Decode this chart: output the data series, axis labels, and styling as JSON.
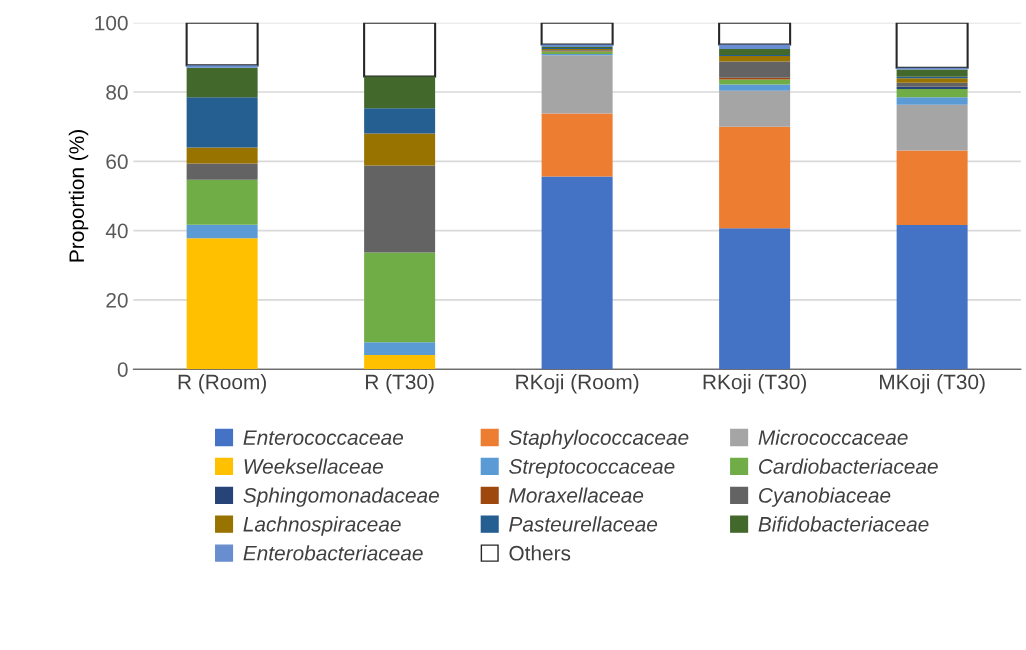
{
  "chart_data": {
    "type": "bar",
    "stacked": true,
    "ylabel": "Proportion (%)",
    "categories": [
      "R (Room)",
      "R (T30)",
      "RKoji (Room)",
      "RKoji (T30)",
      "MKoji (T30)"
    ],
    "ylim": [
      0,
      100
    ],
    "yticks": [
      0,
      20,
      40,
      60,
      80,
      100
    ],
    "grid": "y",
    "legend": "bottom",
    "series": [
      {
        "name": "Enterococcaceae",
        "color": "#4472c4",
        "values": [
          0,
          0,
          55.6,
          40.7,
          41.6
        ]
      },
      {
        "name": "Staphylococcaceae",
        "color": "#ed7d31",
        "values": [
          0,
          0,
          18.2,
          29.3,
          21.5
        ]
      },
      {
        "name": "Micrococcaceae",
        "color": "#a5a5a5",
        "values": [
          0,
          0,
          16.8,
          10.4,
          13.2
        ]
      },
      {
        "name": "Weeksellaceae",
        "color": "#ffc000",
        "values": [
          37.8,
          4.1,
          0,
          0,
          0
        ]
      },
      {
        "name": "Streptococcaceae",
        "color": "#5b9bd5",
        "values": [
          3.9,
          3.7,
          0.4,
          1.8,
          2.2
        ]
      },
      {
        "name": "Cardiobacteriaceae",
        "color": "#70ad47",
        "values": [
          13.0,
          25.9,
          0.7,
          1.4,
          2.4
        ]
      },
      {
        "name": "Sphingomonadaceae",
        "color": "#264478",
        "values": [
          0,
          0,
          0,
          0,
          0.6
        ]
      },
      {
        "name": "Moraxellaceae",
        "color": "#9e480e",
        "values": [
          0,
          0,
          0.2,
          0.5,
          0
        ]
      },
      {
        "name": "Cyanobiaceae",
        "color": "#636363",
        "values": [
          4.7,
          25.1,
          0.2,
          4.7,
          1.2
        ]
      },
      {
        "name": "Lachnospiraceae",
        "color": "#997300",
        "values": [
          4.6,
          9.2,
          0.3,
          1.6,
          1.3
        ]
      },
      {
        "name": "Pasteurellaceae",
        "color": "#255e91",
        "values": [
          14.5,
          7.3,
          0.3,
          0.3,
          0.4
        ]
      },
      {
        "name": "Bifidobacteriaceae",
        "color": "#43682b",
        "values": [
          8.5,
          9.2,
          0.3,
          1.7,
          2.1
        ]
      },
      {
        "name": "Enterobacteriaceae",
        "color": "#698ed0",
        "values": [
          0.7,
          0,
          0.7,
          1.3,
          0.5
        ]
      },
      {
        "name": "Others",
        "color": "#ffffff",
        "values": [
          12.3,
          15.5,
          6.3,
          6.3,
          13.0
        ]
      }
    ]
  }
}
